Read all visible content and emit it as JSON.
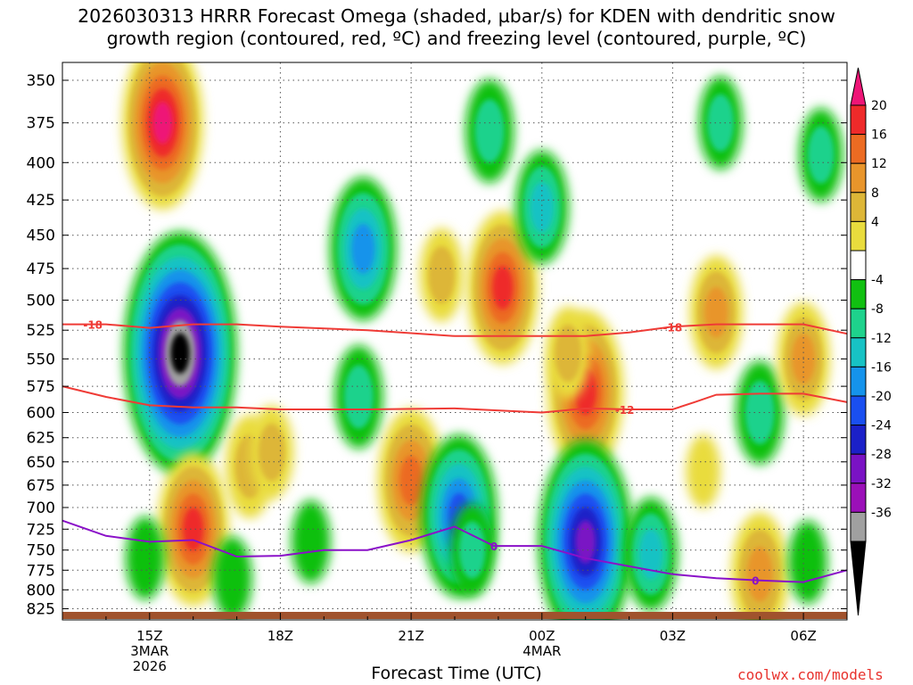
{
  "chart_data": {
    "type": "heatmap",
    "title": "2026030313 HRRR Forecast Omega (shaded, µbar/s) for KDEN with dendritic snow\ngrowth region (contoured, red, ºC) and freezing level (contoured, purple, ºC)",
    "xlabel": "Forecast Time (UTC)",
    "ylabel": "",
    "y_scale": "log-pressure",
    "y_ticks": [
      350,
      375,
      400,
      425,
      450,
      475,
      500,
      525,
      550,
      575,
      600,
      625,
      650,
      675,
      700,
      725,
      750,
      775,
      800,
      825
    ],
    "ylim": [
      840,
      340
    ],
    "x_start": "2026-03-03 13Z",
    "x_ticks": [
      {
        "hour": 15,
        "label": "15Z",
        "sub": [
          "3MAR",
          "2026"
        ]
      },
      {
        "hour": 18,
        "label": "18Z",
        "sub": []
      },
      {
        "hour": 21,
        "label": "21Z",
        "sub": []
      },
      {
        "hour": 24,
        "label": "00Z",
        "sub": [
          "4MAR"
        ]
      },
      {
        "hour": 27,
        "label": "03Z",
        "sub": []
      },
      {
        "hour": 30,
        "label": "06Z",
        "sub": []
      }
    ],
    "xlim": [
      13.0,
      31.0
    ],
    "grid": true,
    "colorbar": {
      "labels": [
        20,
        16,
        12,
        8,
        4,
        -4,
        -8,
        -12,
        -16,
        -20,
        -24,
        -28,
        -32,
        -36
      ],
      "colors": [
        "#ee1577",
        "#ee2a2a",
        "#ec6b22",
        "#e8952b",
        "#ddb637",
        "#e9dc3d",
        "#ffffff",
        "#11c011",
        "#1ed28c",
        "#17c2c4",
        "#1593eb",
        "#1a4ff0",
        "#1b20c8",
        "#7a12c4",
        "#9b10b8",
        "#a0a0a0",
        "#000000"
      ]
    },
    "omega_features": [
      {
        "hour": 15.3,
        "p": 375,
        "value": 24
      },
      {
        "hour": 15.7,
        "p": 545,
        "value": -38
      },
      {
        "hour": 16.0,
        "p": 725,
        "value": 20
      },
      {
        "hour": 17.3,
        "p": 655,
        "value": 10
      },
      {
        "hour": 17.8,
        "p": 640,
        "value": 8
      },
      {
        "hour": 19.9,
        "p": 460,
        "value": -18
      },
      {
        "hour": 19.8,
        "p": 585,
        "value": -10
      },
      {
        "hour": 21.0,
        "p": 670,
        "value": 18
      },
      {
        "hour": 22.1,
        "p": 710,
        "value": -22
      },
      {
        "hour": 22.4,
        "p": 750,
        "value": -8
      },
      {
        "hour": 23.1,
        "p": 490,
        "value": 20
      },
      {
        "hour": 22.8,
        "p": 380,
        "value": -10
      },
      {
        "hour": 24.0,
        "p": 430,
        "value": -12
      },
      {
        "hour": 25.0,
        "p": 580,
        "value": 22
      },
      {
        "hour": 24.6,
        "p": 545,
        "value": 8
      },
      {
        "hour": 25.0,
        "p": 740,
        "value": -30
      },
      {
        "hour": 26.5,
        "p": 755,
        "value": -12
      },
      {
        "hour": 28.0,
        "p": 510,
        "value": 12
      },
      {
        "hour": 27.7,
        "p": 660,
        "value": 4
      },
      {
        "hour": 29.0,
        "p": 780,
        "value": 14
      },
      {
        "hour": 29.0,
        "p": 600,
        "value": -10
      },
      {
        "hour": 30.0,
        "p": 550,
        "value": 12
      },
      {
        "hour": 30.1,
        "p": 765,
        "value": -6
      },
      {
        "hour": 28.1,
        "p": 375,
        "value": -8
      },
      {
        "hour": 30.4,
        "p": 395,
        "value": -8
      },
      {
        "hour": 21.7,
        "p": 480,
        "value": 8
      },
      {
        "hour": 18.7,
        "p": 740,
        "value": -6
      },
      {
        "hour": 16.9,
        "p": 785,
        "value": -6
      },
      {
        "hour": 14.9,
        "p": 760,
        "value": -6
      }
    ],
    "contours": [
      {
        "name": "dendritic snow growth region",
        "color": "#ef3b36",
        "level": -18,
        "label": "-18",
        "label_hours": [
          13.7,
          27.0
        ],
        "points": [
          [
            13.0,
            520
          ],
          [
            14.0,
            520
          ],
          [
            15.0,
            523
          ],
          [
            16.0,
            520
          ],
          [
            17.0,
            520
          ],
          [
            18.0,
            522
          ],
          [
            20.0,
            525
          ],
          [
            22.0,
            530
          ],
          [
            24.0,
            530
          ],
          [
            25.0,
            530
          ],
          [
            26.0,
            527
          ],
          [
            27.0,
            522
          ],
          [
            28.0,
            520
          ],
          [
            29.0,
            520
          ],
          [
            30.0,
            520
          ],
          [
            31.0,
            528
          ]
        ]
      },
      {
        "name": "dendritic snow growth region",
        "color": "#ef3b36",
        "level": -12,
        "label": "-12",
        "label_hours": [
          25.9
        ],
        "points": [
          [
            13.0,
            575
          ],
          [
            14.0,
            585
          ],
          [
            15.0,
            593
          ],
          [
            16.0,
            595
          ],
          [
            17.0,
            595
          ],
          [
            18.0,
            597
          ],
          [
            20.0,
            597
          ],
          [
            22.0,
            596
          ],
          [
            24.0,
            600
          ],
          [
            25.0,
            596
          ],
          [
            26.0,
            597
          ],
          [
            27.0,
            597
          ],
          [
            27.5,
            590
          ],
          [
            28.0,
            583
          ],
          [
            29.0,
            582
          ],
          [
            30.0,
            582
          ],
          [
            31.0,
            590
          ]
        ]
      },
      {
        "name": "freezing level",
        "color": "#8a10c8",
        "level": 0,
        "label": "0",
        "label_hours": [
          22.9,
          28.9
        ],
        "points": [
          [
            13.0,
            715
          ],
          [
            14.0,
            733
          ],
          [
            15.0,
            740
          ],
          [
            16.0,
            738
          ],
          [
            17.0,
            758
          ],
          [
            18.0,
            757
          ],
          [
            19.0,
            750
          ],
          [
            20.0,
            750
          ],
          [
            21.0,
            738
          ],
          [
            22.0,
            722
          ],
          [
            22.9,
            745
          ],
          [
            24.0,
            745
          ],
          [
            25.0,
            760
          ],
          [
            26.0,
            770
          ],
          [
            27.0,
            780
          ],
          [
            28.0,
            785
          ],
          [
            29.0,
            788
          ],
          [
            30.0,
            790
          ],
          [
            31.0,
            775
          ]
        ]
      }
    ]
  },
  "credit": "coolwx.com/models"
}
